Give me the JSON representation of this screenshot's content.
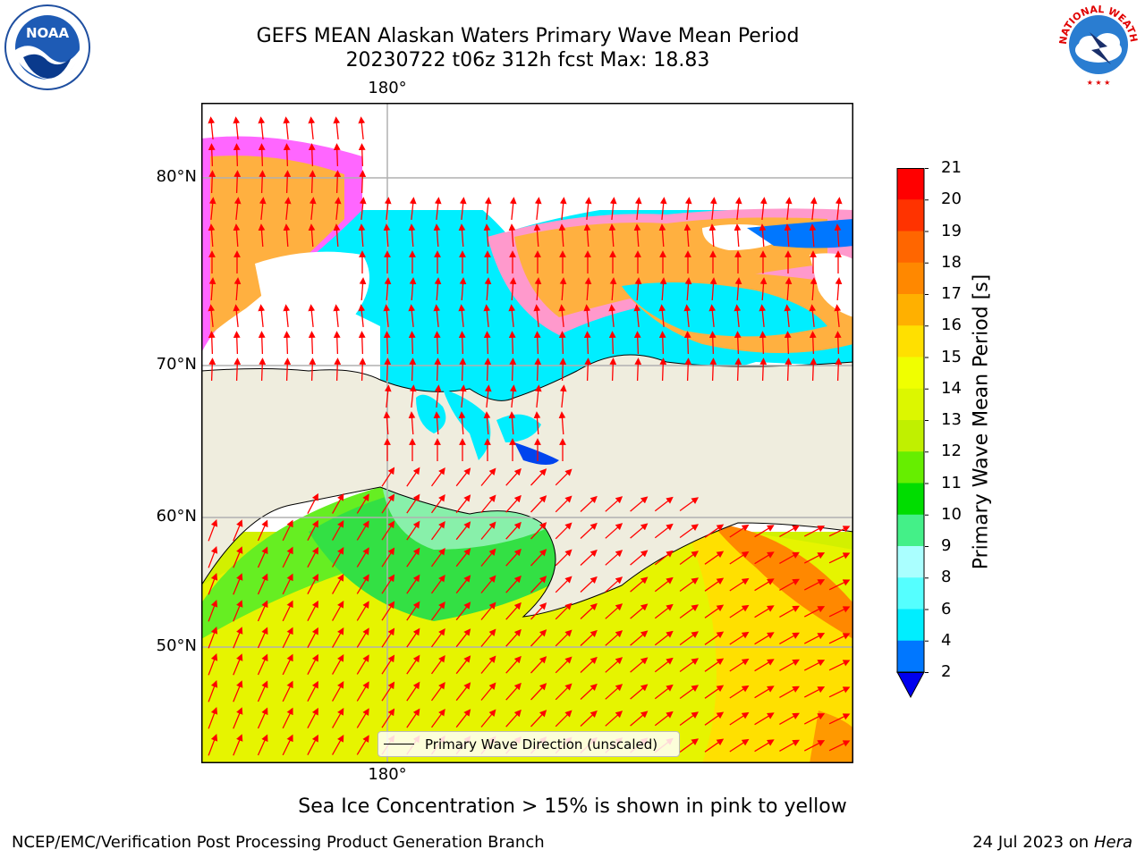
{
  "title": {
    "line1": "GEFS MEAN Alaskan Waters Primary Wave Mean Period",
    "line2": "20230722 t06z 312h fcst   Max: 18.83"
  },
  "map": {
    "lon_label_top": "180°",
    "lon_label_bottom": "180°",
    "lat_labels": [
      "80°N",
      "70°N",
      "60°N",
      "50°N"
    ],
    "legend_label": "Primary Wave Direction (unscaled)",
    "land_color": "#efedde",
    "arrow_color": "#ff0000"
  },
  "colorbar": {
    "label": "Primary Wave Mean Period [s]",
    "ticks": [
      "21",
      "20",
      "19",
      "18",
      "17",
      "16",
      "15",
      "14",
      "13",
      "12",
      "11",
      "10",
      "9",
      "8",
      "6",
      "4",
      "2"
    ],
    "colors": [
      "#ff0000",
      "#ff3300",
      "#ff6600",
      "#ff8800",
      "#ffb000",
      "#ffe000",
      "#f0ff00",
      "#dcf700",
      "#c0f000",
      "#66ee00",
      "#00dd00",
      "#44f088",
      "#aaffff",
      "#55ffff",
      "#00eeff",
      "#0077ff",
      "#0000ee"
    ]
  },
  "caption": "Sea Ice Concentration > 15% is shown in pink to yellow",
  "footer": {
    "left": "NCEP/EMC/Verification Post Processing Product Generation Branch",
    "right_prefix": "24 Jul 2023 on ",
    "right_host": "Hera"
  },
  "logos": {
    "noaa_text": "NOAA",
    "nws_text": "NATIONAL WEATHER SERVICE"
  }
}
